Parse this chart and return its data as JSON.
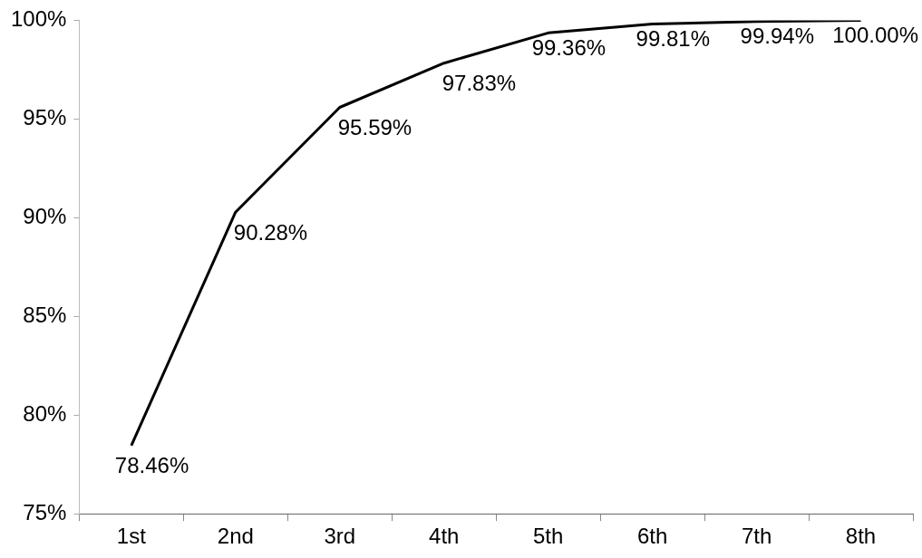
{
  "chart_data": {
    "type": "line",
    "categories": [
      "1st",
      "2nd",
      "3rd",
      "4th",
      "5th",
      "6th",
      "7th",
      "8th"
    ],
    "series": [
      {
        "color": "#000000",
        "values": [
          78.46,
          90.28,
          95.59,
          97.83,
          99.36,
          99.81,
          99.94,
          100.0
        ],
        "value_labels": [
          "78.46%",
          "90.28%",
          "95.59%",
          "97.83%",
          "99.36%",
          "99.81%",
          "99.94%",
          "100.00%"
        ]
      }
    ],
    "ylim": [
      75,
      100
    ],
    "yticks": [
      {
        "value": 75,
        "label": "75%"
      },
      {
        "value": 80,
        "label": "80%"
      },
      {
        "value": 85,
        "label": "85%"
      },
      {
        "value": 90,
        "label": "90%"
      },
      {
        "value": 95,
        "label": "95%"
      },
      {
        "value": 100,
        "label": "100%"
      }
    ],
    "grid": false,
    "legend": false,
    "marker": "none",
    "line_style": "solid"
  }
}
